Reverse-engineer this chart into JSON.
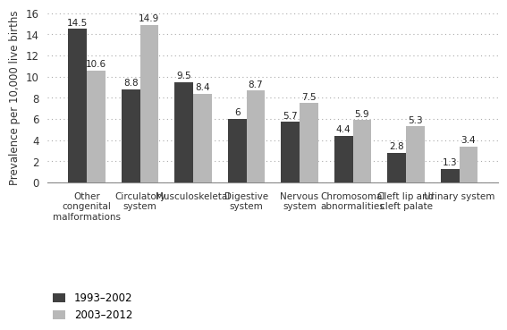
{
  "categories": [
    "Other\ncongenital\nmalformations",
    "Circulatory\nsystem",
    "Musculoskeletal",
    "Digestive\nsystem",
    "Nervous\nsystem",
    "Chromosomal\nabnormalities",
    "Cleft lip and\ncleft palate",
    "Urinary system"
  ],
  "series": {
    "1993-2002": [
      14.5,
      8.8,
      9.5,
      6.0,
      5.7,
      4.4,
      2.8,
      1.3
    ],
    "2003-2012": [
      10.6,
      14.9,
      8.4,
      8.7,
      7.5,
      5.9,
      5.3,
      3.4
    ]
  },
  "value_labels": {
    "1993-2002": [
      "14.5",
      "8.8",
      "9.5",
      "6",
      "5.7",
      "4.4",
      "2.8",
      "1.3"
    ],
    "2003-2012": [
      "10.6",
      "14.9",
      "8.4",
      "8.7",
      "7.5",
      "5.9",
      "5.3",
      "3.4"
    ]
  },
  "bar_colors": {
    "1993-2002": "#404040",
    "2003-2012": "#b8b8b8"
  },
  "ylabel": "Prevalence per 10,000 live births",
  "ylim": [
    0,
    16
  ],
  "yticks": [
    0,
    2,
    4,
    6,
    8,
    10,
    12,
    14,
    16
  ],
  "bar_width": 0.35,
  "label_fontsize": 7.5,
  "value_fontsize": 7.5,
  "ylabel_fontsize": 8.5,
  "ytick_fontsize": 8.5,
  "legend_labels": [
    "1993–2002",
    "2003–2012"
  ],
  "background_color": "#ffffff"
}
